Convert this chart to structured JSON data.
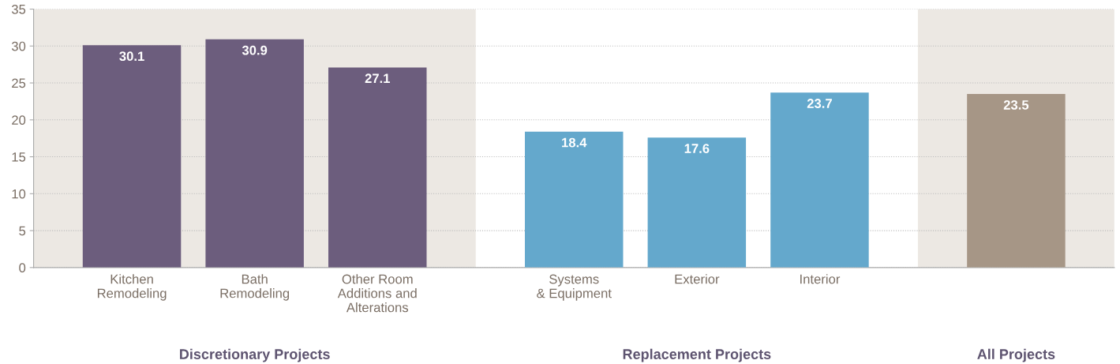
{
  "chart_data": {
    "type": "bar",
    "categories": [
      "Kitchen\nRemodeling",
      "Bath\nRemodeling",
      "Other Room\nAdditions and\nAlterations",
      "Systems\n& Equipment",
      "Exterior",
      "Interior",
      null
    ],
    "values": [
      30.1,
      30.9,
      27.1,
      18.4,
      17.6,
      23.7,
      23.5
    ],
    "colors": [
      "#6c5d7d",
      "#6c5d7d",
      "#6c5d7d",
      "#64a8cc",
      "#64a8cc",
      "#64a8cc",
      "#a69686"
    ],
    "data_labels": true,
    "ylim": [
      0,
      35
    ],
    "yticks": [
      0,
      5,
      10,
      15,
      20,
      25,
      30,
      35
    ],
    "grid": "y",
    "annotations": [
      "Discretionary Projects",
      "Replacement Projects",
      "All Projects"
    ]
  }
}
